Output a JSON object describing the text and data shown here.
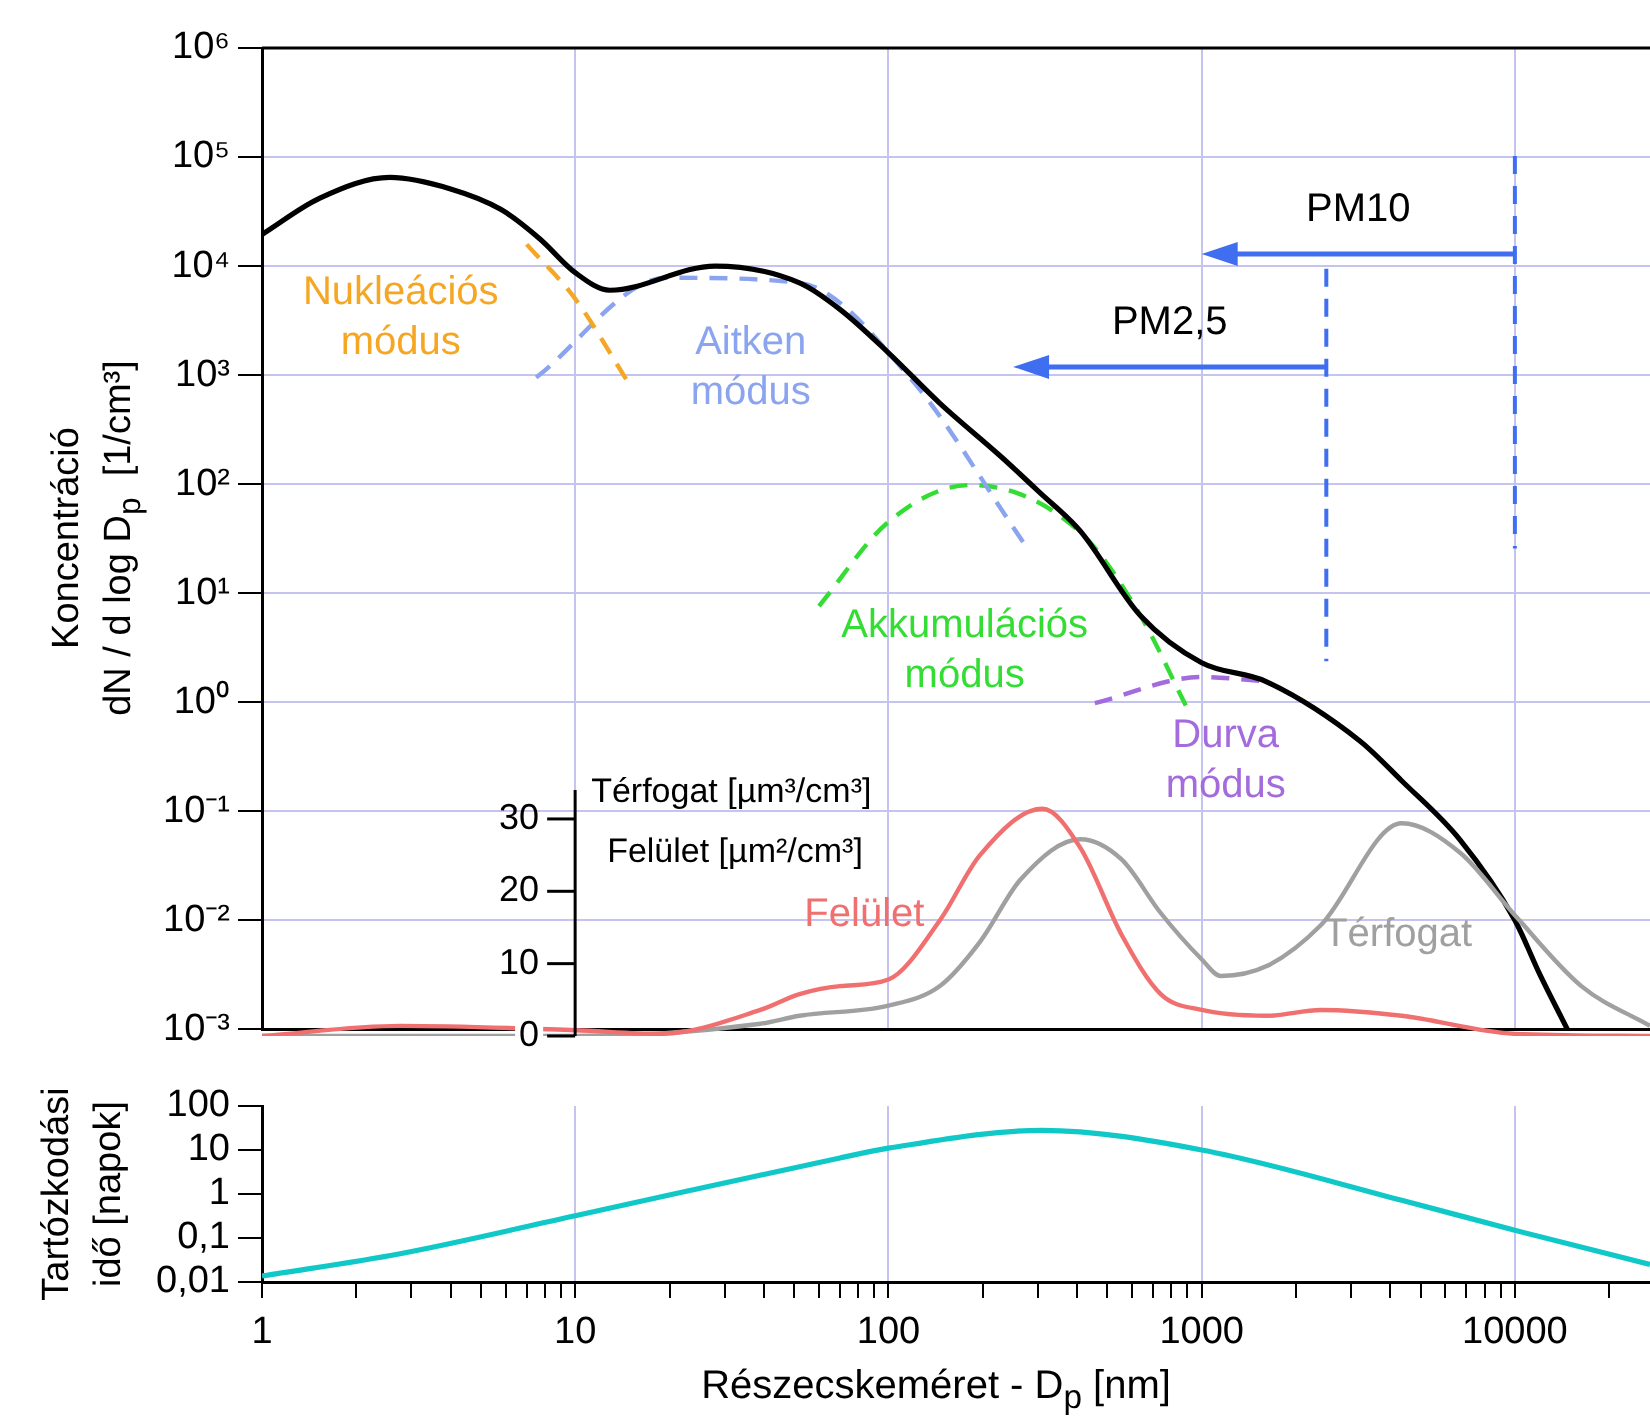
{
  "chart_data": [
    {
      "type": "line",
      "log": "xy",
      "xlim": [
        1,
        27000
      ],
      "ylim": [
        0.001,
        1000000
      ],
      "xticks": [
        1,
        10,
        100,
        1000,
        10000
      ],
      "yticks": [
        {
          "value": 1000000,
          "label": "10⁶"
        },
        {
          "value": 100000,
          "label": "10⁵"
        },
        {
          "value": 10000,
          "label": "10⁴"
        },
        {
          "value": 1000,
          "label": "10³"
        },
        {
          "value": 100,
          "label": "10²"
        },
        {
          "value": 10,
          "label": "10¹"
        },
        {
          "value": 1,
          "label": "10⁰"
        },
        {
          "value": 0.1,
          "label": "10⁻¹"
        },
        {
          "value": 0.01,
          "label": "10⁻²"
        },
        {
          "value": 0.001,
          "label": "10⁻³"
        }
      ],
      "ylabel": "Koncentráció\ndN / d log D$_{p}$  [1/cm³]",
      "grid": true,
      "legend": false,
      "tick_labels": "y",
      "ref_lines": [
        {
          "axis": "x",
          "value": 10000,
          "label": "PM10",
          "color": "#3f6ff0",
          "line_style": "dashed"
        },
        {
          "axis": "x",
          "value": 2500,
          "label": "PM2,5",
          "color": "#3f6ff0",
          "line_style": "dashed"
        }
      ],
      "series": [
        {
          "color": "#000000",
          "x": [
            1,
            1.53,
            2.56,
            4,
            5.8,
            7.7,
            10,
            12.9,
            28,
            52,
            70,
            100,
            146,
            229,
            305,
            410,
            638,
            1000,
            1600,
            3200,
            4350,
            6700,
            10000,
            12000,
            14700
          ],
          "values": [
            19500,
            42000,
            65000,
            51000,
            33000,
            17800,
            8700,
            6000,
            10000,
            7000,
            4000,
            1600,
            550,
            178,
            83,
            37,
            6.2,
            2.3,
            1.55,
            0.44,
            0.19,
            0.054,
            0.01,
            0.0032,
            0.001
          ]
        },
        {
          "name": "Nukleációs módus",
          "color": "#f5a623",
          "line_style": "dashed",
          "x": [
            7,
            10,
            14.6
          ],
          "values": [
            15800,
            5000,
            900
          ]
        },
        {
          "name": "Aitken módus",
          "color": "#8aa4f0",
          "line_style": "dashed",
          "x": [
            7.5,
            19.6,
            52,
            117,
            270
          ],
          "values": [
            950,
            7800,
            7000,
            950,
            29
          ]
        },
        {
          "name": "Akkumulációs módus",
          "color": "#33dd33",
          "line_style": "dashed",
          "x": [
            60,
            100,
            183,
            410,
            638,
            890
          ],
          "values": [
            7.6,
            45,
            98,
            36,
            6.2,
            0.93
          ]
        },
        {
          "name": "Durva módus",
          "color": "#a36bdc",
          "line_style": "dashed",
          "x": [
            456,
            1000,
            1600
          ],
          "values": [
            0.98,
            1.7,
            1.55
          ]
        }
      ]
    },
    {
      "type": "line",
      "log": "x",
      "xlim": [
        1,
        27000
      ],
      "ylim": [
        0,
        34
      ],
      "yticks": [
        0,
        10,
        20,
        30
      ],
      "ylabel": "Térfogat [µm³/cm³]",
      "annotations": [
        "Felület [µm²/cm³]"
      ],
      "legend": false,
      "tick_labels": "y",
      "series": [
        {
          "name": "Felület",
          "color": "#f07070",
          "x": [
            1,
            2.76,
            10,
            18.7,
            39,
            52,
            70,
            100,
            146,
            196,
            310,
            410,
            555,
            740,
            1000,
            1620,
            2400,
            4350,
            10000,
            27000
          ],
          "values": [
            0,
            1.4,
            0.8,
            0.3,
            3.6,
            5.8,
            6.9,
            7.8,
            16,
            25,
            31.4,
            26,
            14,
            5.8,
            3.6,
            2.8,
            3.6,
            2.8,
            0.3,
            0
          ]
        },
        {
          "name": "Térfogat",
          "color": "#a0a0a0",
          "x": [
            1,
            10,
            39,
            52,
            100,
            146,
            196,
            265,
            410,
            555,
            740,
            1000,
            1150,
            1620,
            2400,
            4350,
            6700,
            10000,
            16300,
            27000
          ],
          "values": [
            0,
            0,
            1.7,
            2.8,
            4.2,
            6.9,
            13,
            21.7,
            27.2,
            24.4,
            17,
            10.6,
            8.3,
            9.7,
            15.3,
            29.4,
            25.3,
            16.7,
            6.9,
            1.4
          ]
        }
      ]
    },
    {
      "type": "line",
      "log": "xy",
      "xlim": [
        1,
        27000
      ],
      "ylim": [
        0.01,
        100
      ],
      "xticks": [
        1,
        {
          "value": 2,
          "label": null
        },
        {
          "value": 3,
          "label": null
        },
        {
          "value": 4,
          "label": null
        },
        {
          "value": 5,
          "label": null
        },
        {
          "value": 6,
          "label": null
        },
        {
          "value": 7,
          "label": null
        },
        {
          "value": 8,
          "label": null
        },
        {
          "value": 9,
          "label": null
        },
        10,
        {
          "value": 20,
          "label": null
        },
        {
          "value": 30,
          "label": null
        },
        {
          "value": 40,
          "label": null
        },
        {
          "value": 50,
          "label": null
        },
        {
          "value": 60,
          "label": null
        },
        {
          "value": 70,
          "label": null
        },
        {
          "value": 80,
          "label": null
        },
        {
          "value": 90,
          "label": null
        },
        100,
        {
          "value": 200,
          "label": null
        },
        {
          "value": 300,
          "label": null
        },
        {
          "value": 400,
          "label": null
        },
        {
          "value": 500,
          "label": null
        },
        {
          "value": 600,
          "label": null
        },
        {
          "value": 700,
          "label": null
        },
        {
          "value": 800,
          "label": null
        },
        {
          "value": 900,
          "label": null
        },
        1000,
        {
          "value": 2000,
          "label": null
        },
        {
          "value": 3000,
          "label": null
        },
        {
          "value": 4000,
          "label": null
        },
        {
          "value": 5000,
          "label": null
        },
        {
          "value": 6000,
          "label": null
        },
        {
          "value": 7000,
          "label": null
        },
        {
          "value": 8000,
          "label": null
        },
        {
          "value": 9000,
          "label": null
        },
        10000,
        {
          "value": 20000,
          "label": null
        }
      ],
      "yticks": [
        100,
        10,
        1,
        {
          "value": 0.1,
          "label": "0,1"
        },
        {
          "value": 0.01,
          "label": "0,01"
        }
      ],
      "xlabel": "Részecskeméret - D$_{p}$ [nm]",
      "ylabel": "Tartózkodási\nidő [napok]",
      "grid": "x",
      "legend": false,
      "series": [
        {
          "color": "#10c8c8",
          "x": [
            1,
            2.76,
            10,
            70,
            100,
            310,
            1000,
            4350,
            10000,
            27000
          ],
          "values": [
            0.0137,
            0.044,
            0.32,
            6.6,
            11,
            28,
            10,
            0.72,
            0.15,
            0.025
          ]
        }
      ]
    }
  ]
}
